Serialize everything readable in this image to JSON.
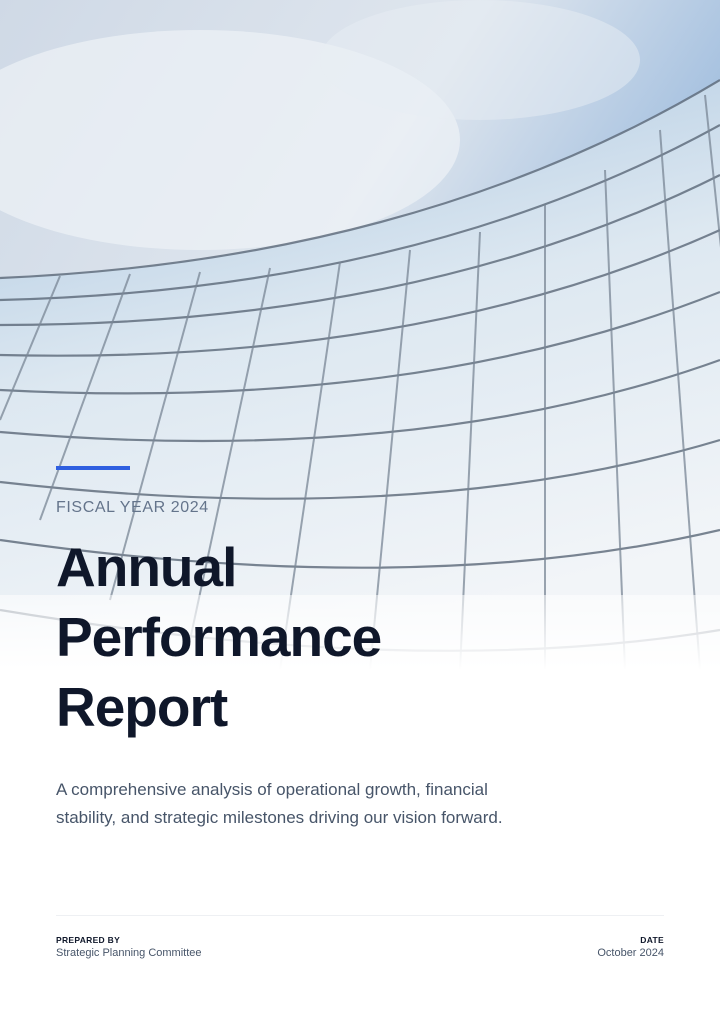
{
  "cover": {
    "eyebrow": "FISCAL YEAR 2024",
    "title": "Annual Performance Report",
    "summary": "A comprehensive analysis of operational growth, financial stability, and strategic milestones driving our vision forward.",
    "prepared_by": {
      "label": "PREPARED BY",
      "value": "Strategic Planning Committee"
    },
    "date": {
      "label": "DATE",
      "value": "October 2024"
    }
  }
}
